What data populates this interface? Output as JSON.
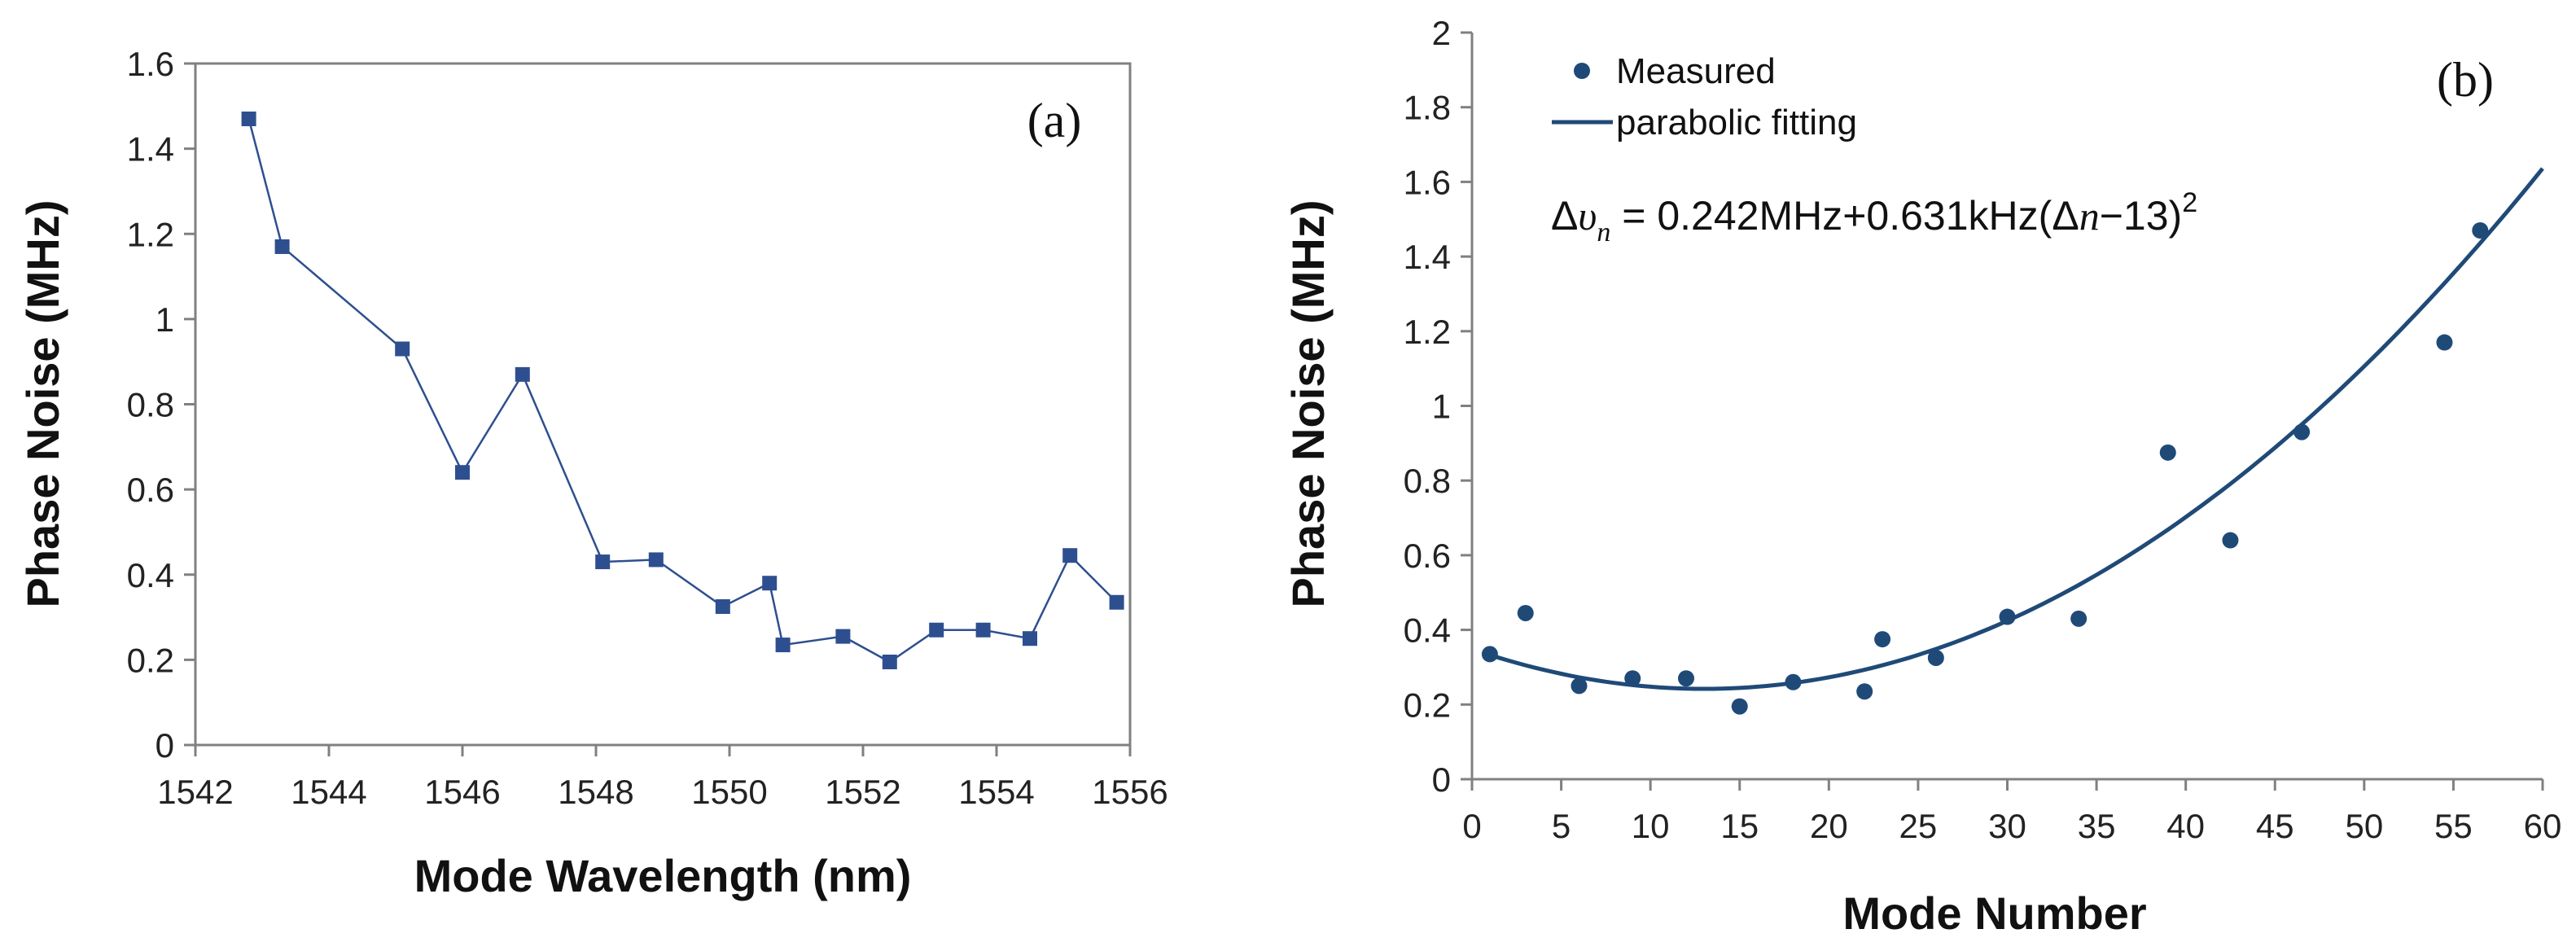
{
  "colors": {
    "series_a": "#2e4f8f",
    "measured": "#1f4a78",
    "fit": "#1f4a78",
    "axis": "#808080"
  },
  "chart_data": [
    {
      "type": "line",
      "panel": "(a)",
      "title": "",
      "xlabel": "Mode Wavelength (nm)",
      "ylabel": "Phase Noise (MHz)",
      "xlim": [
        1542,
        1556
      ],
      "ylim": [
        0,
        1.6
      ],
      "xticks": [
        "1542",
        "1544",
        "1546",
        "1548",
        "1550",
        "1552",
        "1554",
        "1556"
      ],
      "yticks": [
        "0",
        "0.2",
        "0.4",
        "0.6",
        "0.8",
        "1",
        "1.2",
        "1.4",
        "1.6"
      ],
      "grid": false,
      "series": [
        {
          "name": "Phase noise",
          "marker": "square",
          "x": [
            1542.8,
            1543.3,
            1545.1,
            1546.0,
            1546.9,
            1548.1,
            1548.9,
            1549.9,
            1550.6,
            1550.8,
            1551.7,
            1552.4,
            1553.1,
            1553.8,
            1554.5,
            1555.1,
            1555.8
          ],
          "y": [
            1.47,
            1.17,
            0.93,
            0.64,
            0.87,
            0.43,
            0.435,
            0.325,
            0.38,
            0.235,
            0.255,
            0.195,
            0.27,
            0.27,
            0.25,
            0.445,
            0.335
          ]
        }
      ]
    },
    {
      "type": "scatter",
      "panel": "(b)",
      "title": "",
      "xlabel": "Mode Number",
      "ylabel": "Phase Noise (MHz)",
      "xlim": [
        0,
        60
      ],
      "ylim": [
        0,
        2
      ],
      "xticks": [
        "0",
        "5",
        "10",
        "15",
        "20",
        "25",
        "30",
        "35",
        "40",
        "45",
        "50",
        "55",
        "60"
      ],
      "yticks": [
        "0",
        "0.2",
        "0.4",
        "0.6",
        "0.8",
        "1",
        "1.2",
        "1.4",
        "1.6",
        "1.8",
        "2"
      ],
      "grid": false,
      "legend": {
        "placement": "top-left",
        "entries": [
          "Measured",
          "parabolic fitting"
        ]
      },
      "annotation": {
        "prefix": "Δ",
        "var": "υ",
        "sub": "n",
        "body": " = 0.242MHz+0.631kHz(",
        "delta": "Δ",
        "n_var": "n",
        "tail": "−13)",
        "exp": "2"
      },
      "series": [
        {
          "name": "Measured",
          "marker": "circle",
          "x": [
            1,
            3,
            6,
            9,
            12,
            15,
            18,
            22,
            23,
            26,
            30,
            34,
            39,
            42.5,
            46.5,
            54.5,
            56.5
          ],
          "y": [
            0.335,
            0.445,
            0.25,
            0.27,
            0.27,
            0.195,
            0.26,
            0.235,
            0.375,
            0.325,
            0.435,
            0.43,
            0.875,
            0.64,
            0.93,
            1.17,
            1.47
          ]
        },
        {
          "name": "parabolic fitting",
          "type": "curve",
          "equation": "y = 0.242 + 0.000631*(x-13)^2",
          "x_range": [
            1,
            60
          ]
        }
      ]
    }
  ]
}
